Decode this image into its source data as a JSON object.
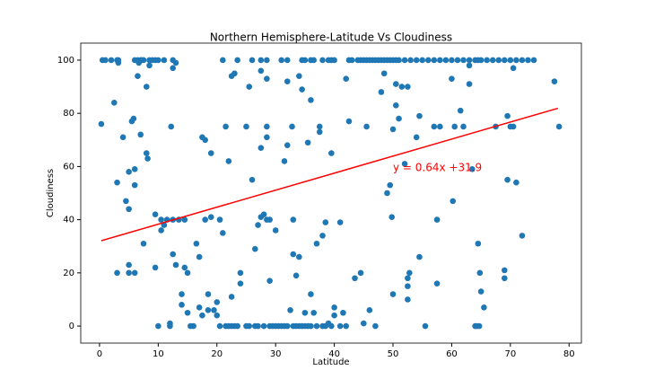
{
  "chart_data": {
    "type": "scatter",
    "title": "Northern Hemisphere-Latitude Vs Cloudiness",
    "x_label": "Latitude",
    "y_label": "Cloudiness",
    "xlim": [
      -3.2,
      82.1
    ],
    "ylim": [
      -6.4,
      106.4
    ],
    "xticks": [
      0,
      10,
      20,
      30,
      40,
      50,
      60,
      70,
      80
    ],
    "yticks": [
      0,
      20,
      40,
      60,
      80,
      100
    ],
    "grid": false,
    "series": [
      {
        "color": "#1f77b4",
        "x": [
          0.5,
          1,
          2,
          3,
          3.2,
          6,
          6.5,
          7,
          7.2,
          7.5,
          8.5,
          9,
          9.5,
          10,
          11,
          12.5,
          21,
          23.5,
          26,
          27.5,
          28.5,
          31,
          32,
          34.5,
          35,
          36,
          36.5,
          38,
          39,
          39.5,
          40,
          42.5,
          43,
          44,
          44.5,
          45,
          45.5,
          46,
          46.5,
          47,
          47.5,
          48,
          48.5,
          49,
          49.5,
          50,
          50.5,
          51,
          52,
          53,
          54,
          55,
          56,
          57,
          58,
          59,
          60,
          61,
          62,
          63,
          64,
          64.5,
          65,
          66,
          67,
          68,
          69,
          70,
          71,
          72,
          73,
          74,
          21.5,
          22.5,
          23,
          25,
          26.5,
          27,
          28,
          29,
          29.5,
          30,
          30.5,
          31.5,
          32,
          33,
          33.5,
          34,
          34.5,
          35,
          35.5,
          36,
          37,
          38,
          38.5,
          39.5,
          41,
          0.3,
          2.5,
          3,
          3,
          4,
          4.5,
          5,
          5,
          5,
          5,
          5.5,
          5.8,
          6,
          6,
          6,
          6.5,
          7,
          7.5,
          8,
          8,
          8.2,
          9.5,
          9.5,
          10,
          10.5,
          10.5,
          11,
          11.5,
          12,
          12,
          12.2,
          12.5,
          12.5,
          13,
          13.5,
          14,
          14,
          14.5,
          14.5,
          15,
          15,
          15.5,
          16,
          16.5,
          17,
          17,
          17.5,
          17.5,
          18,
          18,
          18.5,
          18.5,
          19,
          19,
          19.5,
          20,
          20,
          20.5,
          20.5,
          21,
          21.5,
          22,
          22,
          22.5,
          22.5,
          23,
          23.5,
          24,
          24,
          25,
          25.5,
          25.5,
          26,
          26.5,
          27,
          27.5,
          27.5,
          27.5,
          28,
          28.5,
          28.5,
          28.5,
          28.5,
          29,
          29,
          30,
          31,
          31.5,
          32,
          32,
          32.5,
          32.8,
          33,
          33,
          33.5,
          34,
          34,
          34.5,
          35,
          35.5,
          36,
          36,
          36.5,
          37,
          37.5,
          37.5,
          38,
          38.5,
          39,
          39.5,
          40,
          40,
          41,
          41.5,
          42,
          42,
          42.5,
          43.5,
          44.5,
          45,
          45.5,
          46,
          47,
          48,
          48.5,
          49,
          49.5,
          49.8,
          50,
          50,
          50.5,
          50.5,
          51,
          51.5,
          52,
          52.5,
          52.5,
          52.8,
          52.5,
          52.5,
          54,
          54.5,
          54.5,
          55.5,
          57,
          57.5,
          57.5,
          58,
          60,
          60.2,
          60.5,
          61.5,
          62,
          63,
          63,
          63.5,
          64,
          64.5,
          64.8,
          65,
          65.5,
          67.5,
          69,
          69,
          69.5,
          69.5,
          70,
          70.5,
          71,
          72,
          77.5,
          78.3,
          70.5,
          64.3,
          64.7,
          3.2,
          8.5,
          12.5,
          13,
          6.7
        ],
        "values": [
          100,
          100,
          100,
          100,
          100,
          100,
          100,
          100,
          100,
          100,
          100,
          100,
          100,
          100,
          100,
          100,
          100,
          100,
          100,
          100,
          100,
          100,
          100,
          100,
          100,
          100,
          100,
          100,
          100,
          100,
          100,
          100,
          100,
          100,
          100,
          100,
          100,
          100,
          100,
          100,
          100,
          100,
          100,
          100,
          100,
          100,
          100,
          100,
          100,
          100,
          100,
          100,
          100,
          100,
          100,
          100,
          100,
          100,
          100,
          100,
          100,
          100,
          100,
          100,
          100,
          100,
          100,
          100,
          100,
          100,
          100,
          100,
          0,
          0,
          0,
          0,
          0,
          0,
          0,
          0,
          0,
          0,
          0,
          0,
          0,
          0,
          0,
          0,
          0,
          0,
          0,
          0,
          0,
          0,
          0,
          0,
          0,
          76,
          84,
          54,
          20,
          71,
          47,
          58,
          44,
          23,
          20,
          77,
          78,
          59,
          53,
          20,
          94,
          72,
          31,
          90,
          65,
          63,
          22,
          42,
          0,
          36,
          40,
          38,
          40,
          1,
          0,
          75,
          40,
          27,
          23,
          40,
          8,
          12,
          22,
          40,
          5,
          20,
          0,
          0,
          31,
          26,
          7,
          71,
          4,
          70,
          40,
          12,
          6,
          41,
          65,
          6,
          9,
          4,
          0,
          40,
          35,
          75,
          62,
          0,
          11,
          94,
          95,
          0,
          16,
          20,
          75,
          90,
          0,
          55,
          29,
          38,
          96,
          41,
          67,
          42,
          93,
          75,
          40,
          71,
          40,
          17,
          36,
          0,
          62,
          92,
          68,
          6,
          75,
          40,
          27,
          19,
          94,
          26,
          89,
          5,
          69,
          85,
          12,
          5,
          31,
          73,
          75,
          34,
          39,
          1,
          65,
          4,
          7,
          39,
          5,
          93,
          0,
          77,
          18,
          20,
          1,
          75,
          6,
          0,
          88,
          95,
          50,
          53,
          41,
          74,
          12,
          83,
          91,
          78,
          90,
          61,
          15,
          18,
          20,
          90,
          10,
          71,
          26,
          79,
          0,
          75,
          40,
          16,
          75,
          93,
          47,
          75,
          81,
          75,
          98,
          91,
          59,
          0,
          31,
          20,
          13,
          7,
          75,
          18,
          21,
          79,
          55,
          75,
          75,
          54,
          34,
          92,
          75,
          97,
          0,
          0,
          99,
          98,
          97,
          99,
          99
        ]
      }
    ],
    "regression": {
      "x": [
        0.3,
        78.1
      ],
      "values": [
        32.1,
        81.9
      ],
      "color": "#ff0000"
    },
    "annotation": "y = 0.64x +31.9"
  }
}
